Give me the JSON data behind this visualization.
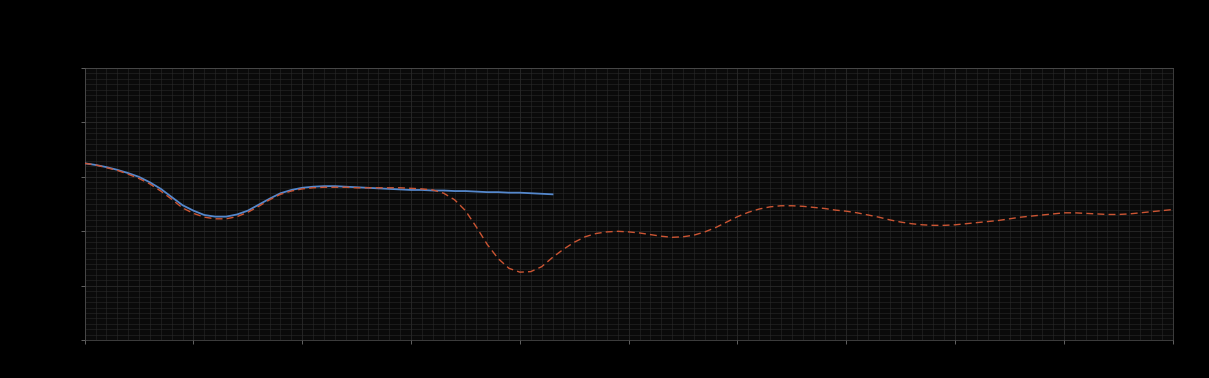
{
  "background_color": "#000000",
  "plot_bg_color": "#0a0a0a",
  "grid_color": "#2a2a2a",
  "text_color": "#888888",
  "spine_color": "#555555",
  "fig_width": 12.09,
  "fig_height": 3.78,
  "dpi": 100,
  "legend_colors": [
    "#5588cc",
    "#cc5533"
  ],
  "ylim": [
    0,
    5
  ],
  "xlim": [
    0,
    100
  ],
  "ytick_positions": [
    0,
    1,
    2,
    3,
    4,
    5
  ],
  "xtick_count": 11,
  "blue_x": [
    0,
    1,
    2,
    3,
    4,
    5,
    6,
    7,
    8,
    9,
    10,
    11,
    12,
    13,
    14,
    15,
    16,
    17,
    18,
    19,
    20,
    21,
    22,
    23,
    24,
    25,
    26,
    27,
    28,
    29,
    30,
    31,
    32,
    33,
    34,
    35,
    36,
    37,
    38,
    39,
    40,
    41,
    42,
    43
  ],
  "blue_y": [
    3.25,
    3.22,
    3.18,
    3.13,
    3.07,
    3.0,
    2.9,
    2.78,
    2.63,
    2.48,
    2.38,
    2.3,
    2.27,
    2.27,
    2.31,
    2.38,
    2.49,
    2.6,
    2.7,
    2.76,
    2.8,
    2.82,
    2.83,
    2.83,
    2.82,
    2.81,
    2.8,
    2.79,
    2.78,
    2.77,
    2.76,
    2.76,
    2.75,
    2.75,
    2.74,
    2.74,
    2.73,
    2.72,
    2.72,
    2.71,
    2.71,
    2.7,
    2.69,
    2.68
  ],
  "red_x": [
    0,
    1,
    2,
    3,
    4,
    5,
    6,
    7,
    8,
    9,
    10,
    11,
    12,
    13,
    14,
    15,
    16,
    17,
    18,
    19,
    20,
    21,
    22,
    23,
    24,
    25,
    26,
    27,
    28,
    29,
    30,
    31,
    32,
    33,
    34,
    35,
    36,
    37,
    38,
    39,
    40,
    41,
    42,
    43,
    44,
    45,
    46,
    47,
    48,
    49,
    50,
    51,
    52,
    53,
    54,
    55,
    56,
    57,
    58,
    59,
    60,
    61,
    62,
    63,
    64,
    65,
    66,
    67,
    68,
    69,
    70,
    71,
    72,
    73,
    74,
    75,
    76,
    77,
    78,
    79,
    80,
    81,
    82,
    83,
    84,
    85,
    86,
    87,
    88,
    89,
    90,
    91,
    92,
    93,
    94,
    95,
    96,
    97,
    98,
    99,
    100
  ],
  "red_y": [
    3.25,
    3.22,
    3.17,
    3.12,
    3.05,
    2.97,
    2.87,
    2.74,
    2.59,
    2.43,
    2.33,
    2.26,
    2.23,
    2.23,
    2.27,
    2.35,
    2.46,
    2.58,
    2.68,
    2.74,
    2.78,
    2.8,
    2.81,
    2.81,
    2.81,
    2.8,
    2.8,
    2.8,
    2.8,
    2.8,
    2.79,
    2.78,
    2.76,
    2.7,
    2.58,
    2.38,
    2.08,
    1.76,
    1.5,
    1.32,
    1.25,
    1.26,
    1.35,
    1.52,
    1.67,
    1.8,
    1.9,
    1.96,
    1.99,
    2.0,
    1.99,
    1.97,
    1.94,
    1.91,
    1.89,
    1.9,
    1.93,
    1.99,
    2.07,
    2.17,
    2.27,
    2.35,
    2.41,
    2.45,
    2.47,
    2.47,
    2.46,
    2.44,
    2.42,
    2.39,
    2.37,
    2.34,
    2.3,
    2.26,
    2.21,
    2.17,
    2.14,
    2.12,
    2.11,
    2.11,
    2.12,
    2.14,
    2.16,
    2.18,
    2.2,
    2.23,
    2.26,
    2.28,
    2.3,
    2.32,
    2.34,
    2.34,
    2.33,
    2.32,
    2.31,
    2.31,
    2.32,
    2.34,
    2.36,
    2.38,
    2.4
  ]
}
